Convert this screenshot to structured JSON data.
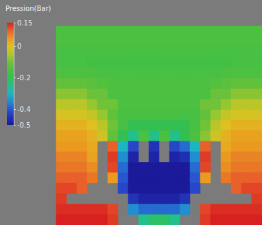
{
  "chart_data": {
    "type": "heatmap",
    "title": "Pression(Bar)",
    "tick_labels": false,
    "colorbar_lim": [
      -0.5,
      0.15
    ],
    "colorbar_ticks": [
      0.15,
      0,
      -0.2,
      -0.4,
      -0.5
    ],
    "cells": [
      [
        -0.15,
        -0.15,
        -0.15,
        -0.15,
        -0.15,
        -0.15,
        -0.15,
        -0.15,
        -0.15,
        -0.15,
        -0.15,
        -0.15,
        -0.15,
        -0.15,
        -0.15,
        -0.15,
        -0.15,
        -0.15,
        -0.15,
        -0.15
      ],
      [
        -0.15,
        -0.15,
        -0.15,
        -0.15,
        -0.15,
        -0.15,
        -0.15,
        -0.15,
        -0.15,
        -0.15,
        -0.15,
        -0.15,
        -0.15,
        -0.15,
        -0.15,
        -0.15,
        -0.15,
        -0.15,
        -0.15,
        -0.15
      ],
      [
        -0.16,
        -0.16,
        -0.16,
        -0.16,
        -0.16,
        -0.16,
        -0.16,
        -0.16,
        -0.16,
        -0.16,
        -0.16,
        -0.16,
        -0.16,
        -0.16,
        -0.16,
        -0.16,
        -0.16,
        -0.16,
        -0.16,
        -0.16
      ],
      [
        -0.16,
        -0.16,
        -0.16,
        -0.17,
        -0.17,
        -0.17,
        -0.17,
        -0.17,
        -0.17,
        -0.17,
        -0.17,
        -0.17,
        -0.17,
        -0.17,
        -0.17,
        -0.17,
        -0.17,
        -0.16,
        -0.16,
        -0.16
      ],
      [
        -0.15,
        -0.15,
        -0.15,
        -0.15,
        -0.16,
        -0.16,
        -0.16,
        -0.16,
        -0.16,
        -0.16,
        -0.16,
        -0.16,
        -0.16,
        -0.16,
        -0.16,
        -0.16,
        -0.15,
        -0.15,
        -0.15,
        -0.15
      ],
      [
        -0.12,
        -0.12,
        -0.12,
        -0.13,
        -0.14,
        -0.15,
        -0.15,
        -0.15,
        -0.15,
        -0.15,
        -0.15,
        -0.15,
        -0.15,
        -0.15,
        -0.15,
        -0.14,
        -0.13,
        -0.12,
        -0.12,
        -0.12
      ],
      [
        -0.08,
        -0.08,
        -0.08,
        -0.11,
        -0.11,
        -0.15,
        -0.15,
        -0.15,
        -0.15,
        -0.15,
        -0.15,
        -0.15,
        -0.15,
        -0.15,
        -0.15,
        -0.11,
        -0.11,
        -0.08,
        -0.08,
        -0.08
      ],
      [
        -0.04,
        -0.04,
        -0.04,
        -0.07,
        -0.1,
        -0.1,
        -0.15,
        -0.15,
        -0.15,
        -0.15,
        -0.15,
        -0.15,
        -0.15,
        -0.15,
        -0.1,
        -0.1,
        -0.07,
        -0.04,
        -0.04,
        -0.04
      ],
      [
        -0.01,
        -0.01,
        -0.01,
        -0.03,
        -0.07,
        -0.12,
        -0.16,
        -0.16,
        -0.16,
        -0.16,
        -0.16,
        -0.16,
        -0.16,
        -0.16,
        -0.12,
        -0.07,
        -0.03,
        -0.01,
        -0.01,
        -0.01
      ],
      [
        0.02,
        0.02,
        0.02,
        0.0,
        -0.04,
        -0.1,
        -0.16,
        -0.2,
        -0.2,
        -0.2,
        -0.2,
        -0.2,
        -0.2,
        -0.16,
        -0.1,
        -0.04,
        0.0,
        0.02,
        0.02,
        0.02
      ],
      [
        0.04,
        0.04,
        0.04,
        0.02,
        -0.02,
        -0.12,
        -0.2,
        -0.25,
        -0.15,
        -0.25,
        -0.15,
        -0.25,
        -0.2,
        -0.15,
        -0.08,
        -0.02,
        0.02,
        0.04,
        0.04,
        0.04
      ],
      [
        0.05,
        0.05,
        0.05,
        0.03,
        null,
        0.1,
        -0.3,
        -0.42,
        null,
        -0.45,
        null,
        -0.42,
        -0.38,
        -0.3,
        0.1,
        null,
        0.03,
        0.05,
        0.05,
        0.05
      ],
      [
        0.07,
        0.07,
        0.07,
        0.04,
        null,
        0.13,
        -0.35,
        -0.48,
        null,
        -0.48,
        null,
        -0.48,
        -0.46,
        -0.35,
        0.13,
        null,
        0.05,
        0.07,
        0.07,
        0.07
      ],
      [
        0.08,
        0.08,
        0.08,
        0.06,
        null,
        0.12,
        -0.38,
        -0.5,
        -0.5,
        -0.5,
        -0.5,
        -0.5,
        -0.5,
        -0.38,
        0.12,
        null,
        0.06,
        0.08,
        0.08,
        0.08
      ],
      [
        0.1,
        0.1,
        0.1,
        0.08,
        null,
        0.05,
        -0.4,
        -0.5,
        -0.5,
        -0.5,
        -0.5,
        -0.5,
        -0.5,
        -0.4,
        0.05,
        null,
        0.08,
        0.1,
        0.1,
        0.1
      ],
      [
        0.12,
        0.12,
        0.1,
        null,
        null,
        null,
        -0.42,
        -0.5,
        -0.5,
        -0.5,
        -0.5,
        -0.5,
        -0.5,
        -0.42,
        null,
        null,
        null,
        0.1,
        0.12,
        0.12
      ],
      [
        0.13,
        null,
        null,
        null,
        null,
        null,
        null,
        -0.45,
        -0.48,
        -0.48,
        -0.48,
        -0.48,
        -0.45,
        null,
        null,
        null,
        null,
        null,
        null,
        0.13
      ],
      [
        0.14,
        0.14,
        0.14,
        0.14,
        0.14,
        0.12,
        null,
        -0.35,
        -0.38,
        -0.38,
        -0.38,
        -0.38,
        -0.35,
        null,
        0.12,
        0.14,
        0.14,
        0.14,
        0.14,
        0.14
      ],
      [
        0.15,
        0.15,
        0.15,
        0.15,
        0.15,
        0.13,
        null,
        null,
        -0.25,
        -0.22,
        -0.22,
        -0.25,
        null,
        null,
        0.13,
        0.15,
        0.15,
        0.15,
        0.15,
        0.15
      ]
    ]
  }
}
